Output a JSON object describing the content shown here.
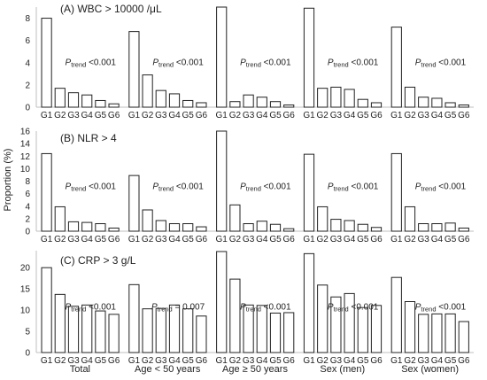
{
  "figure": {
    "ylabel": "Proportion (%)",
    "group_labels": [
      "Total",
      "Age < 50 years",
      "Age ≥ 50 years",
      "Sex (men)",
      "Sex (women)"
    ]
  },
  "chart_data": [
    {
      "type": "bar",
      "title": "(A) WBC > 10000 /μL",
      "ylabel": "Proportion (%)",
      "ylim": [
        0,
        9
      ],
      "yticks": [
        0,
        2,
        4,
        6,
        8
      ],
      "grid": false,
      "categories": [
        "G1",
        "G2",
        "G3",
        "G4",
        "G5",
        "G6"
      ],
      "panels": [
        {
          "group": "Total",
          "values": [
            8.0,
            1.7,
            1.3,
            1.1,
            0.6,
            0.3
          ],
          "annotation": {
            "prefix": "P",
            "sub": "trend",
            "text": " <0.001"
          }
        },
        {
          "group": "Age < 50 years",
          "values": [
            6.8,
            2.9,
            1.5,
            1.2,
            0.6,
            0.4
          ],
          "annotation": {
            "prefix": "P",
            "sub": "trend",
            "text": " <0.001"
          }
        },
        {
          "group": "Age ≥ 50 years",
          "values": [
            9.0,
            0.5,
            1.1,
            0.9,
            0.5,
            0.2
          ],
          "annotation": {
            "prefix": "P",
            "sub": "trend",
            "text": " <0.001"
          }
        },
        {
          "group": "Sex (men)",
          "values": [
            8.9,
            1.7,
            1.8,
            1.6,
            0.7,
            0.4
          ],
          "annotation": {
            "prefix": "P",
            "sub": "trend",
            "text": " <0.001"
          }
        },
        {
          "group": "Sex (women)",
          "values": [
            7.2,
            1.8,
            0.9,
            0.8,
            0.4,
            0.2
          ],
          "annotation": {
            "prefix": "P",
            "sub": "trend",
            "text": " <0.001"
          }
        }
      ]
    },
    {
      "type": "bar",
      "title": "(B) NLR > 4",
      "ylabel": "Proportion (%)",
      "ylim": [
        0,
        16
      ],
      "yticks": [
        0,
        2,
        4,
        6,
        8,
        10,
        12,
        14,
        16
      ],
      "grid": false,
      "categories": [
        "G1",
        "G2",
        "G3",
        "G4",
        "G5",
        "G6"
      ],
      "panels": [
        {
          "group": "Total",
          "values": [
            12.4,
            3.9,
            1.5,
            1.4,
            1.2,
            0.5
          ],
          "annotation": {
            "prefix": "P",
            "sub": "trend",
            "text": " <0.001"
          }
        },
        {
          "group": "Age < 50 years",
          "values": [
            8.9,
            3.4,
            1.7,
            1.2,
            1.2,
            0.7
          ],
          "annotation": {
            "prefix": "P",
            "sub": "trend",
            "text": " <0.001"
          }
        },
        {
          "group": "Age ≥ 50 years",
          "values": [
            16.1,
            4.2,
            1.2,
            1.6,
            1.1,
            0.4
          ],
          "annotation": {
            "prefix": "P",
            "sub": "trend",
            "text": " <0.001"
          }
        },
        {
          "group": "Sex (men)",
          "values": [
            12.3,
            3.9,
            1.9,
            1.7,
            1.1,
            0.6
          ],
          "annotation": {
            "prefix": "P",
            "sub": "trend",
            "text": " <0.001"
          }
        },
        {
          "group": "Sex (women)",
          "values": [
            12.4,
            3.9,
            1.2,
            1.2,
            1.3,
            0.5
          ],
          "annotation": {
            "prefix": "P",
            "sub": "trend",
            "text": " <0.001"
          }
        }
      ]
    },
    {
      "type": "bar",
      "title": "(C) CRP > 3 g/L",
      "ylabel": "Proportion (%)",
      "ylim": [
        0,
        24
      ],
      "yticks": [
        0,
        5,
        10,
        15,
        20
      ],
      "grid": false,
      "categories": [
        "G1",
        "G2",
        "G3",
        "G4",
        "G5",
        "G6"
      ],
      "panels": [
        {
          "group": "Total",
          "values": [
            20.0,
            13.7,
            10.9,
            11.2,
            9.8,
            9.0
          ],
          "annotation": {
            "prefix": "P",
            "sub": "trend",
            "text": " <0.001"
          }
        },
        {
          "group": "Age < 50 years",
          "values": [
            16.0,
            10.3,
            10.4,
            11.2,
            10.3,
            8.6
          ],
          "annotation": {
            "prefix": "P",
            "sub": "trend",
            "text": " = 0.007"
          }
        },
        {
          "group": "Age ≥ 50 years",
          "values": [
            23.8,
            17.3,
            11.2,
            11.1,
            9.3,
            9.4
          ],
          "annotation": {
            "prefix": "P",
            "sub": "trend",
            "text": " <0.001"
          }
        },
        {
          "group": "Sex (men)",
          "values": [
            23.3,
            15.9,
            13.1,
            13.9,
            10.6,
            11.1
          ],
          "annotation": {
            "prefix": "P",
            "sub": "trend",
            "text": " <0.001"
          }
        },
        {
          "group": "Sex (women)",
          "values": [
            17.7,
            12.0,
            9.0,
            9.1,
            9.1,
            7.3
          ],
          "annotation": {
            "prefix": "P",
            "sub": "trend",
            "text": " <0.001"
          }
        }
      ]
    }
  ]
}
